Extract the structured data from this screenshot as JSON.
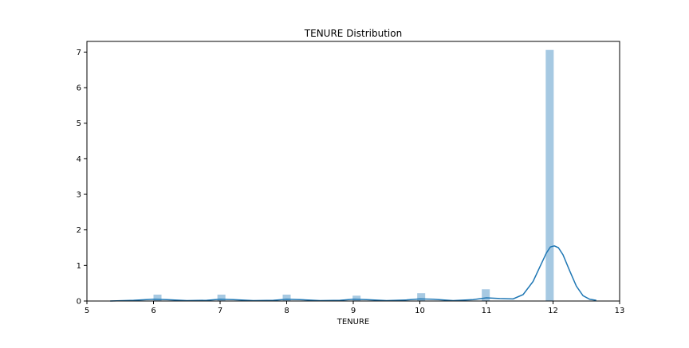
{
  "chart_data": {
    "type": "bar",
    "title": "TENURE Distribution",
    "xlabel": "TENURE",
    "ylabel": "",
    "xlim": [
      5,
      13
    ],
    "ylim": [
      0,
      7.3
    ],
    "x_ticks": [
      5,
      6,
      7,
      8,
      9,
      10,
      11,
      12,
      13
    ],
    "y_ticks": [
      0,
      1,
      2,
      3,
      4,
      5,
      6,
      7
    ],
    "grid": false,
    "colors": {
      "bar": "#a6c9e2",
      "kde": "#1f77b4",
      "axes": "#000000"
    },
    "histogram": {
      "bin_width": 0.12,
      "bars": [
        {
          "x": 6.06,
          "height": 0.18
        },
        {
          "x": 7.02,
          "height": 0.18
        },
        {
          "x": 8.0,
          "height": 0.18
        },
        {
          "x": 9.05,
          "height": 0.15
        },
        {
          "x": 10.02,
          "height": 0.22
        },
        {
          "x": 10.99,
          "height": 0.33
        },
        {
          "x": 11.95,
          "height": 7.06
        }
      ]
    },
    "kde": {
      "x": [
        5.35,
        5.7,
        6.0,
        6.2,
        6.5,
        6.8,
        7.0,
        7.2,
        7.5,
        7.8,
        8.0,
        8.2,
        8.5,
        8.8,
        9.0,
        9.2,
        9.5,
        9.8,
        10.0,
        10.2,
        10.5,
        10.8,
        11.0,
        11.2,
        11.4,
        11.55,
        11.7,
        11.8,
        11.9,
        11.96,
        12.02,
        12.08,
        12.15,
        12.25,
        12.35,
        12.45,
        12.55,
        12.65
      ],
      "y": [
        0.0,
        0.02,
        0.05,
        0.04,
        0.01,
        0.02,
        0.05,
        0.04,
        0.01,
        0.02,
        0.05,
        0.04,
        0.01,
        0.02,
        0.05,
        0.04,
        0.01,
        0.03,
        0.06,
        0.05,
        0.01,
        0.04,
        0.09,
        0.07,
        0.06,
        0.18,
        0.55,
        0.95,
        1.35,
        1.52,
        1.55,
        1.5,
        1.3,
        0.85,
        0.42,
        0.15,
        0.05,
        0.02
      ]
    }
  }
}
